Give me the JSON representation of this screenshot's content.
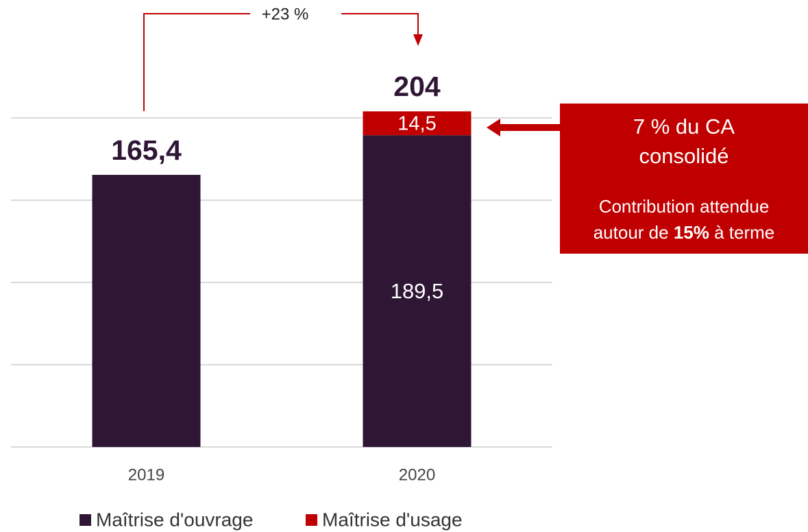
{
  "chart_data": {
    "type": "stacked_bar",
    "categories": [
      "2019",
      "2020"
    ],
    "series": [
      {
        "name": "Maîtrise d'ouvrage",
        "color": "#2e1634",
        "values": [
          165.4,
          189.5
        ],
        "value_labels": [
          null,
          "189,5"
        ]
      },
      {
        "name": "Maîtrise d'usage",
        "color": "#c00000",
        "values": [
          null,
          14.5
        ],
        "value_labels": [
          null,
          "14,5"
        ]
      }
    ],
    "totals": [
      165.4,
      204
    ],
    "total_labels": [
      "165,4",
      "204"
    ],
    "ylim": [
      0,
      200
    ],
    "yticks": [
      0,
      50,
      100,
      150,
      200
    ],
    "grid": true,
    "legend": "bottom",
    "growth_annotation": "+23 %",
    "callout": {
      "title_lines": [
        "7 % du CA",
        "consolidé"
      ],
      "text_line1": "Contribution attendue",
      "text_line2_before": "autour de",
      "text_line2_bold": "15%",
      "text_line2_after": "à terme",
      "color": "#c00000"
    }
  }
}
